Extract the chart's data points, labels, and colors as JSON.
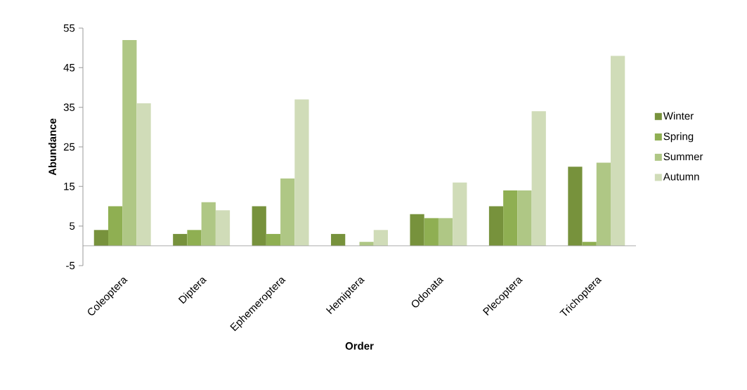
{
  "chart_data": {
    "type": "bar",
    "xlabel": "Order",
    "ylabel": "Abundance",
    "categories": [
      "Coleoptera",
      "Diptera",
      "Ephemeroptera",
      "Hemiptera",
      "Odonata",
      "Plecoptera",
      "Trichoptera"
    ],
    "series": [
      {
        "name": "Winter",
        "color": "#77923c",
        "values": [
          4,
          3,
          10,
          3,
          8,
          10,
          20
        ]
      },
      {
        "name": "Spring",
        "color": "#8faf52",
        "values": [
          10,
          4,
          3,
          0,
          7,
          14,
          1
        ]
      },
      {
        "name": "Summer",
        "color": "#afc785",
        "values": [
          52,
          11,
          17,
          1,
          7,
          14,
          21
        ]
      },
      {
        "name": "Autumn",
        "color": "#d0dcb8",
        "values": [
          36,
          9,
          37,
          4,
          16,
          34,
          48
        ]
      }
    ],
    "ylim": [
      -5,
      55
    ],
    "yticks": [
      -5,
      5,
      15,
      25,
      35,
      45,
      55
    ],
    "legend": "right"
  }
}
